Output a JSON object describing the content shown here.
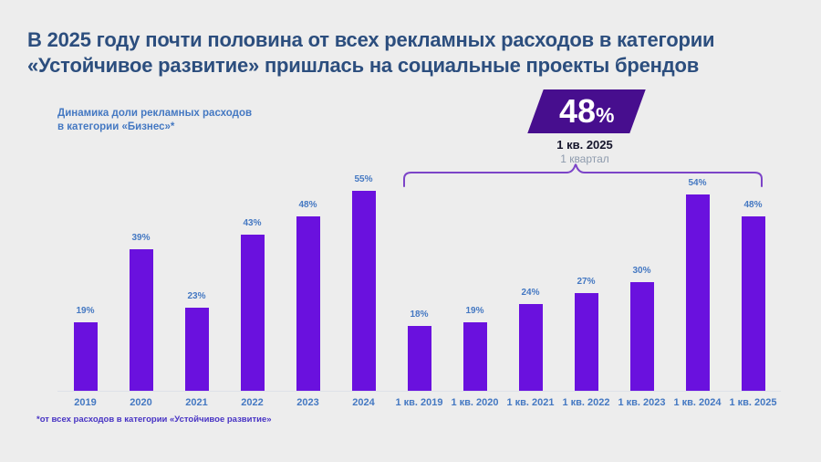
{
  "header": {
    "title_line1": "В 2025 году почти половина от всех рекламных расходов в категории",
    "title_line2": "«Устойчивое развитие» пришлась на социальные проекты брендов"
  },
  "chart_label": {
    "line1": "Динамика доли рекламных расходов",
    "line2": "в категории «Бизнес»*"
  },
  "callout": {
    "value": "48",
    "unit": "%",
    "period": "1 кв. 2025",
    "period_sub": "1 квартал"
  },
  "footnote": "*от всех расходов в категории «Устойчивое развитие»",
  "chart_data": {
    "type": "bar",
    "title": "Динамика доли рекламных расходов в категории «Бизнес»*",
    "categories": [
      "2019",
      "2020",
      "2021",
      "2022",
      "2023",
      "2024",
      "1 кв. 2019",
      "1 кв. 2020",
      "1 кв. 2021",
      "1 кв. 2022",
      "1 кв. 2023",
      "1 кв. 2024",
      "1 кв. 2025"
    ],
    "values": [
      19,
      39,
      23,
      43,
      48,
      55,
      18,
      19,
      24,
      27,
      30,
      54,
      48
    ],
    "value_suffix": "%",
    "xlabel": "",
    "ylabel": "",
    "ylim": [
      0,
      55
    ],
    "grid": false,
    "data_labels": true,
    "legend": false,
    "highlighted_point": {
      "category": "1 кв. 2025",
      "value": 48
    },
    "brace_annotation_span": [
      "1 кв. 2019",
      "1 кв. 2025"
    ]
  },
  "colors": {
    "background": "#EDEDED",
    "title": "#2C4E7E",
    "label_blue": "#4478C2",
    "bar": "#6A11DE",
    "callout_bg": "#470E8E",
    "callout_text": "#FFFFFF",
    "period_text": "#15152B",
    "period_sub_text": "#8E9BAD",
    "brace": "#7C44C8",
    "footnote": "#4733C4",
    "axis_line": "#DDE1E8"
  }
}
